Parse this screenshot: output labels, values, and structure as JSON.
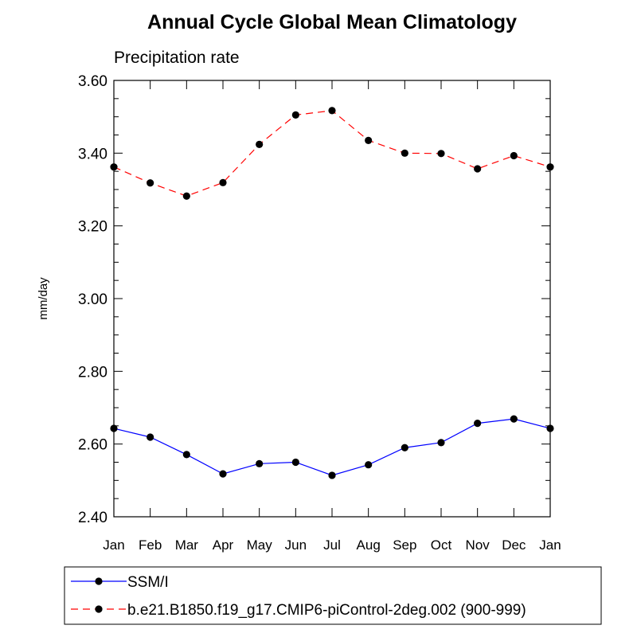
{
  "chart_data": {
    "type": "line",
    "title": "Annual Cycle Global Mean Climatology",
    "subtitle": "Precipitation rate",
    "xlabel": "",
    "ylabel": "mm/day",
    "ylim": [
      2.4,
      3.6
    ],
    "yticks": [
      "2.40",
      "2.60",
      "2.80",
      "3.00",
      "3.20",
      "3.40",
      "3.60"
    ],
    "categories": [
      "Jan",
      "Feb",
      "Mar",
      "Apr",
      "May",
      "Jun",
      "Jul",
      "Aug",
      "Sep",
      "Oct",
      "Nov",
      "Dec",
      "Jan"
    ],
    "grid": false,
    "legend_position": "bottom",
    "series": [
      {
        "name": "SSM/I",
        "color": "#0000ff",
        "dash": "solid",
        "values": [
          2.643,
          2.619,
          2.571,
          2.518,
          2.546,
          2.55,
          2.514,
          2.543,
          2.59,
          2.604,
          2.657,
          2.669,
          2.643
        ]
      },
      {
        "name": "b.e21.B1850.f19_g17.CMIP6-piControl-2deg.002 (900-999)",
        "color": "#ff0000",
        "dash": "dashed",
        "values": [
          3.362,
          3.318,
          3.282,
          3.319,
          3.424,
          3.505,
          3.517,
          3.435,
          3.4,
          3.399,
          3.357,
          3.393,
          3.362
        ]
      }
    ]
  }
}
